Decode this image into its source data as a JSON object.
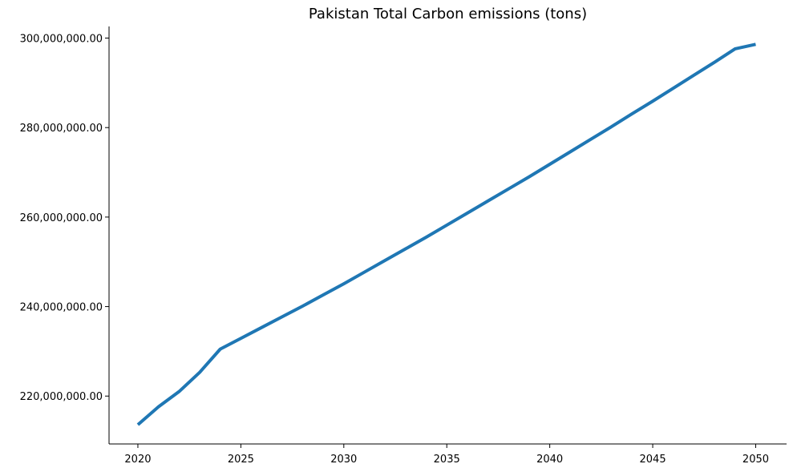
{
  "chart_data": {
    "type": "line",
    "title": "Pakistan Total Carbon emissions (tons)",
    "xlabel": "",
    "ylabel": "",
    "x": [
      2020,
      2021,
      2022,
      2023,
      2024,
      2025,
      2026,
      2027,
      2028,
      2029,
      2030,
      2031,
      2032,
      2033,
      2034,
      2035,
      2036,
      2037,
      2038,
      2039,
      2040,
      2041,
      2042,
      2043,
      2044,
      2045,
      2046,
      2047,
      2048,
      2049,
      2050
    ],
    "series": [
      {
        "color": "#1f77b4",
        "values": [
          213600000,
          217600000,
          221000000,
          225300000,
          230500000,
          232900000,
          235300000,
          237700000,
          240100000,
          242600000,
          245100000,
          247700000,
          250300000,
          252900000,
          255500000,
          258200000,
          260900000,
          263600000,
          266300000,
          269000000,
          271800000,
          274600000,
          277400000,
          280200000,
          283100000,
          285900000,
          288800000,
          291700000,
          294600000,
          297600000,
          298600000
        ]
      }
    ],
    "xlim": [
      2018.6,
      2051.5
    ],
    "ylim": [
      209300000,
      302600000
    ],
    "xticks": [
      2020,
      2025,
      2030,
      2035,
      2040,
      2045,
      2050
    ],
    "xtick_labels": [
      "2020",
      "2025",
      "2030",
      "2035",
      "2040",
      "2045",
      "2050"
    ],
    "yticks": [
      220000000,
      240000000,
      260000000,
      280000000,
      300000000
    ],
    "ytick_labels": [
      "220,000,000.00",
      "240,000,000.00",
      "260,000,000.00",
      "280,000,000.00",
      "300,000,000.00"
    ],
    "grid": false,
    "legend": "none",
    "spines": [
      "left",
      "bottom"
    ]
  }
}
